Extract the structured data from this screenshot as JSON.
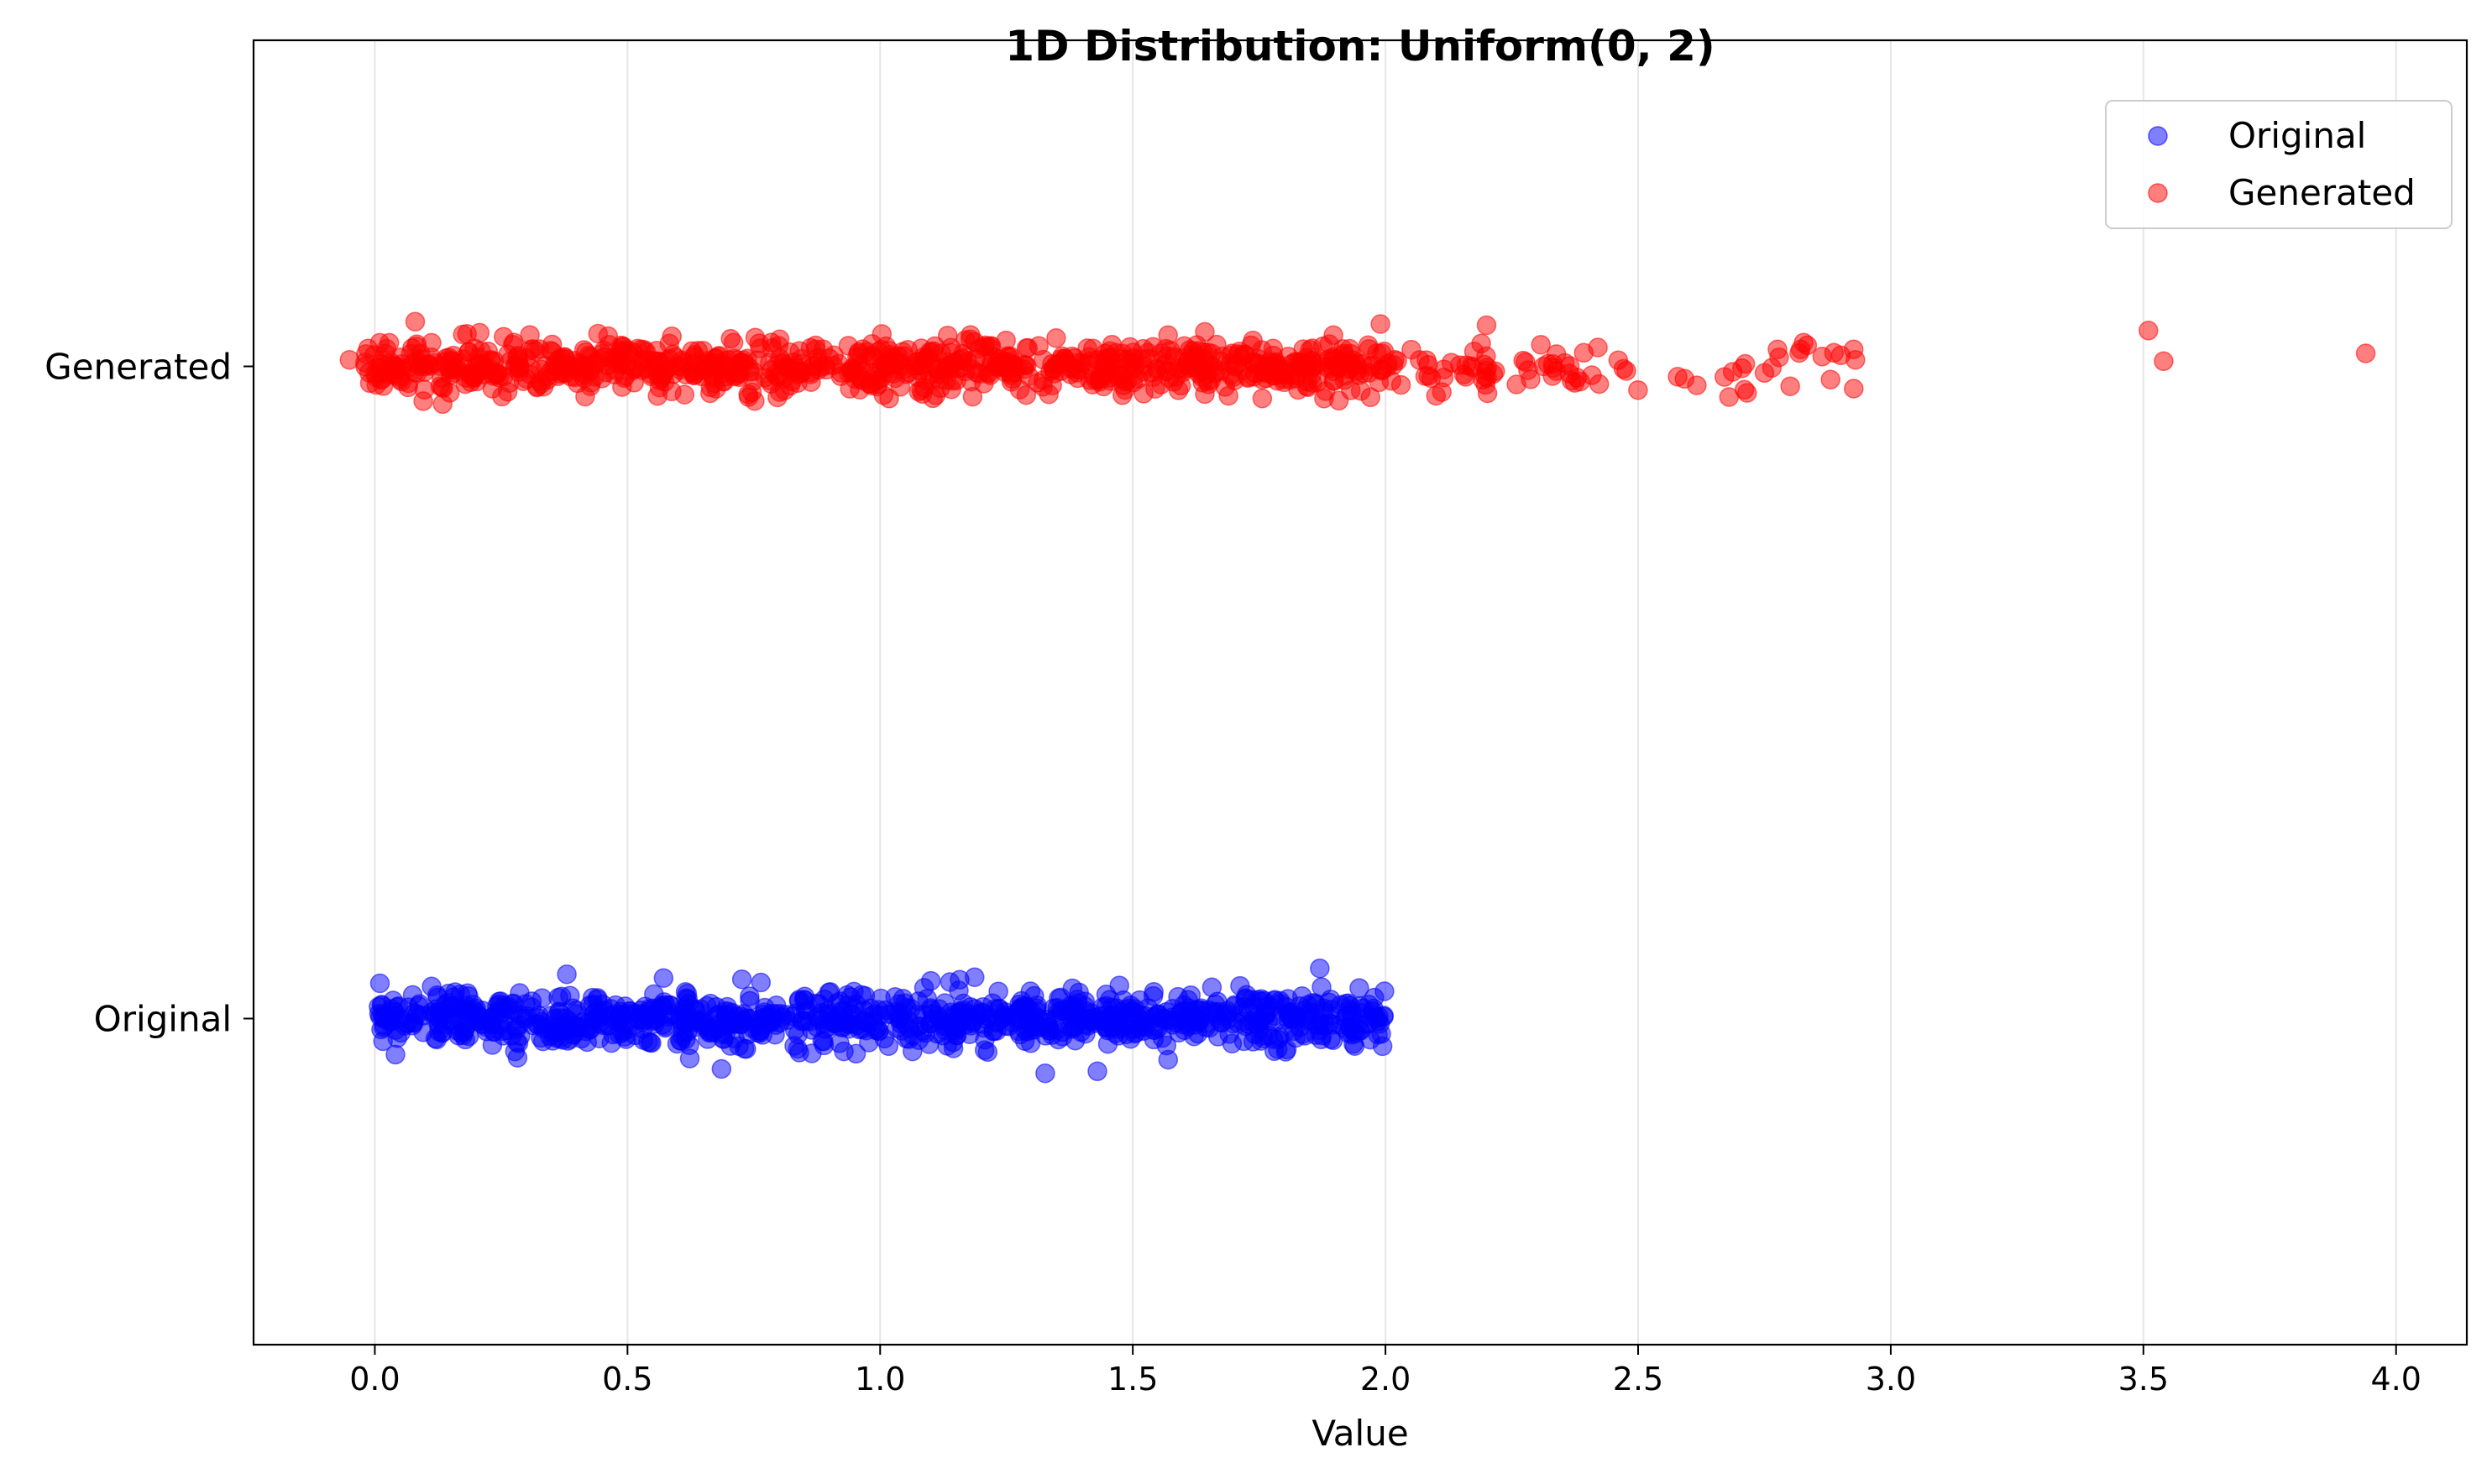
{
  "chart_data": {
    "type": "scatter",
    "title": "1D Distribution: Uniform(0, 2)",
    "xlabel": "Value",
    "ylabel": "",
    "xlim": [
      -0.24,
      4.14
    ],
    "ylim": [
      -0.5,
      1.5
    ],
    "xticks": [
      "0.0",
      "0.5",
      "1.0",
      "1.5",
      "2.0",
      "2.5",
      "3.0",
      "3.5",
      "4.0"
    ],
    "yticks": [
      "Original",
      "Generated"
    ],
    "grid": "x-axis, light gray",
    "legend": {
      "placement": "top-right",
      "entries": [
        "Original",
        "Generated"
      ]
    },
    "series": [
      {
        "name": "Original",
        "color": "#0000ff",
        "alpha": 0.5,
        "y_level": 0,
        "y_label": "Original",
        "x_range": [
          0.0,
          2.0
        ],
        "approx_point_count": 1000,
        "jitter_sd": 0.02,
        "notable_points": [
          {
            "x": 0.01,
            "y": 0.054
          },
          {
            "x": 0.38,
            "y": 0.068
          },
          {
            "x": 0.84,
            "y": -0.052
          },
          {
            "x": 1.57,
            "y": -0.063
          },
          {
            "x": 1.87,
            "y": 0.077
          },
          {
            "x": 1.78,
            "y": -0.05
          }
        ]
      },
      {
        "name": "Generated",
        "color": "#ff0000",
        "alpha": 0.5,
        "y_level": 1,
        "y_label": "Generated",
        "x_range": [
          -0.05,
          3.94
        ],
        "approx_point_count": 1000,
        "jitter_sd": 0.02,
        "notable_points": [
          {
            "x": -0.05,
            "y": 1.01
          },
          {
            "x": 1.99,
            "y": 1.065
          },
          {
            "x": 2.2,
            "y": 1.063
          },
          {
            "x": 2.1,
            "y": 0.955
          },
          {
            "x": 2.68,
            "y": 0.953
          },
          {
            "x": 2.75,
            "y": 0.99
          },
          {
            "x": 2.93,
            "y": 1.01
          },
          {
            "x": 3.51,
            "y": 1.055
          },
          {
            "x": 3.54,
            "y": 1.008
          },
          {
            "x": 3.94,
            "y": 1.02
          }
        ]
      }
    ]
  }
}
